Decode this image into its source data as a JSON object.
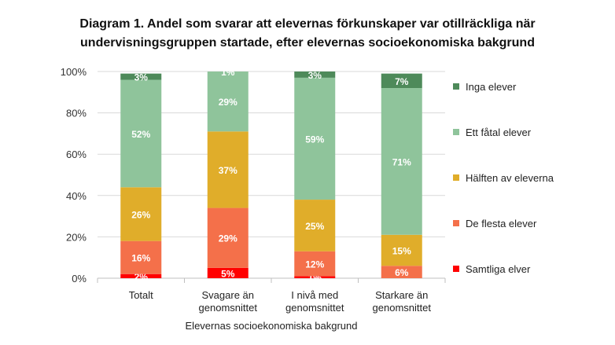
{
  "chart_data": {
    "type": "bar",
    "stacked": true,
    "title_lines": [
      "Diagram 1. Andel som svarar att elevernas förkunskaper var otillräckliga när",
      "undervisningsgruppen startade, efter elevernas socioekonomiska bakgrund"
    ],
    "xlabel": "Elevernas socioekonomiska bakgrund",
    "ylabel": "",
    "ylim": [
      0,
      100
    ],
    "y_ticks": [
      "0%",
      "20%",
      "40%",
      "60%",
      "80%",
      "100%"
    ],
    "categories": [
      [
        "Totalt"
      ],
      [
        "Svagare än",
        "genomsnittet"
      ],
      [
        "I nivå med",
        "genomsnittet"
      ],
      [
        "Starkare än",
        "genomsnittet"
      ]
    ],
    "series": [
      {
        "name": "Samtliga elver",
        "color": "#ff0000",
        "values": [
          2,
          5,
          1,
          0
        ],
        "labels": [
          "2%",
          "5%",
          "1%",
          ""
        ]
      },
      {
        "name": "De flesta elever",
        "color": "#f4704a",
        "values": [
          16,
          29,
          12,
          6
        ],
        "labels": [
          "16%",
          "29%",
          "12%",
          "6%"
        ]
      },
      {
        "name": "Hälften av eleverna",
        "color": "#e0ad2a",
        "values": [
          26,
          37,
          25,
          15
        ],
        "labels": [
          "26%",
          "37%",
          "25%",
          "15%"
        ]
      },
      {
        "name": "Ett fåtal elever",
        "color": "#8fc49b",
        "values": [
          52,
          29,
          59,
          71
        ],
        "labels": [
          "52%",
          "29%",
          "59%",
          "71%"
        ]
      },
      {
        "name": "Inga elever",
        "color": "#4e8a5a",
        "values": [
          3,
          1,
          3,
          7
        ],
        "labels": [
          "3%",
          "1%",
          "3%",
          "7%"
        ]
      }
    ],
    "legend_position": "right",
    "grid": true
  }
}
